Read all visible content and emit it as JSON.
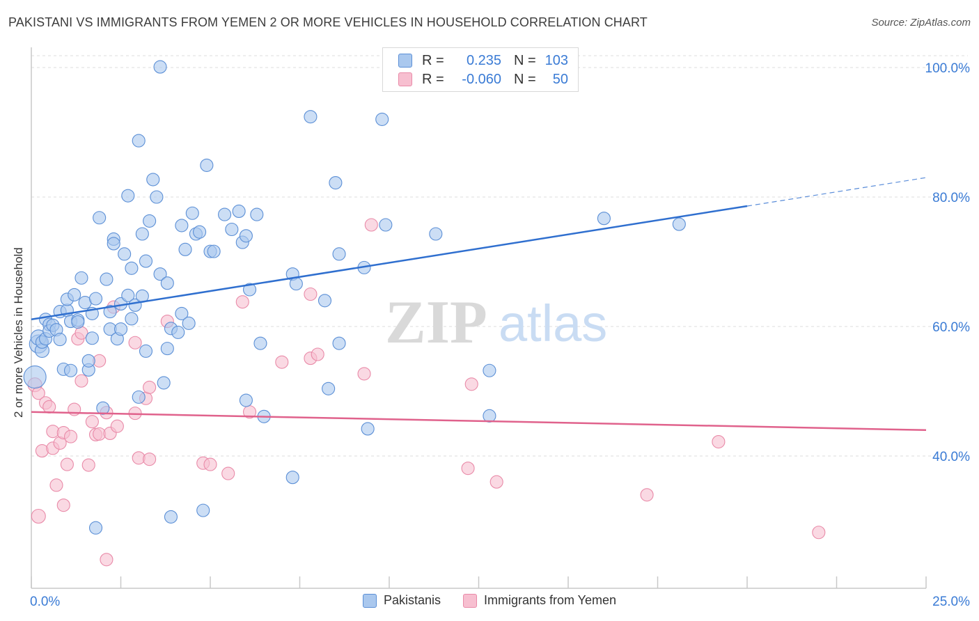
{
  "header": {
    "title": "PAKISTANI VS IMMIGRANTS FROM YEMEN 2 OR MORE VEHICLES IN HOUSEHOLD CORRELATION CHART",
    "source": "Source: ZipAtlas.com"
  },
  "watermark": {
    "zip": "ZIP",
    "atlas": "atlas"
  },
  "legend_top": [
    {
      "r_label": "R =",
      "r_value": "0.235",
      "n_label": "N =",
      "n_value": "103"
    },
    {
      "r_label": "R =",
      "r_value": "-0.060",
      "n_label": "N =",
      "n_value": "50"
    }
  ],
  "legend_bottom": [
    {
      "label": "Pakistanis"
    },
    {
      "label": "Immigrants from Yemen"
    }
  ],
  "colors": {
    "pakistanis_fill": "#aac8ee",
    "pakistanis_stroke": "#5b8fd6",
    "pakistanis_line": "#2f6fcf",
    "yemen_fill": "#f7bfd0",
    "yemen_stroke": "#e98aa8",
    "yemen_line": "#e0628c",
    "tick_label": "#3a7bd5",
    "grid": "#dedede"
  },
  "chart_data": {
    "type": "scatter",
    "title": "PAKISTANI VS IMMIGRANTS FROM YEMEN 2 OR MORE VEHICLES IN HOUSEHOLD CORRELATION CHART",
    "xlabel": "",
    "ylabel": "2 or more Vehicles in Household",
    "xlim": [
      0,
      25
    ],
    "ylim": [
      20,
      103
    ],
    "x_tick_labels": [
      "0.0%",
      "25.0%"
    ],
    "y_ticks": [
      40,
      60,
      80,
      100
    ],
    "y_tick_labels": [
      "40.0%",
      "60.0%",
      "80.0%",
      "100.0%"
    ],
    "grid": true,
    "legend_position": "top-center",
    "series": [
      {
        "name": "Pakistanis",
        "r": 0.235,
        "n": 103,
        "trend": {
          "x0": 0.0,
          "y0": 61.1,
          "x1": 20.0,
          "y1": 78.6,
          "dashed_to_x": 25.0,
          "dashed_to_y": 83.0
        },
        "points": [
          [
            0.1,
            52.2,
            16
          ],
          [
            0.2,
            57.3,
            13
          ],
          [
            0.2,
            58.3,
            11
          ],
          [
            0.3,
            56.3,
            10
          ],
          [
            0.3,
            57.6,
            9
          ],
          [
            0.4,
            61.1,
            9
          ],
          [
            0.4,
            58.1,
            9
          ],
          [
            0.5,
            60.3,
            9
          ],
          [
            0.5,
            59.3,
            9
          ],
          [
            0.6,
            60.2,
            9
          ],
          [
            0.7,
            59.5,
            9
          ],
          [
            0.8,
            62.3,
            9
          ],
          [
            0.8,
            58.0,
            9
          ],
          [
            0.9,
            53.4,
            9
          ],
          [
            1.0,
            62.5,
            9
          ],
          [
            1.0,
            64.2,
            9
          ],
          [
            1.1,
            60.8,
            9
          ],
          [
            1.1,
            53.2,
            9
          ],
          [
            1.2,
            64.9,
            9
          ],
          [
            1.3,
            61.0,
            9
          ],
          [
            1.3,
            60.7,
            9
          ],
          [
            1.4,
            67.5,
            9
          ],
          [
            1.5,
            63.7,
            9
          ],
          [
            1.6,
            53.3,
            9
          ],
          [
            1.6,
            54.7,
            9
          ],
          [
            1.7,
            58.2,
            9
          ],
          [
            1.7,
            62.0,
            9
          ],
          [
            1.8,
            64.3,
            9
          ],
          [
            1.8,
            28.9,
            9
          ],
          [
            1.9,
            76.8,
            9
          ],
          [
            2.0,
            47.4,
            9
          ],
          [
            2.1,
            67.3,
            9
          ],
          [
            2.2,
            59.6,
            9
          ],
          [
            2.2,
            62.3,
            9
          ],
          [
            2.3,
            73.5,
            9
          ],
          [
            2.3,
            72.8,
            9
          ],
          [
            2.4,
            58.1,
            9
          ],
          [
            2.5,
            63.5,
            9
          ],
          [
            2.5,
            59.6,
            9
          ],
          [
            2.6,
            71.2,
            9
          ],
          [
            2.7,
            80.2,
            9
          ],
          [
            2.7,
            64.8,
            9
          ],
          [
            2.8,
            69.0,
            9
          ],
          [
            2.8,
            61.2,
            9
          ],
          [
            2.9,
            63.3,
            9
          ],
          [
            3.0,
            49.1,
            9
          ],
          [
            3.0,
            88.7,
            9
          ],
          [
            3.1,
            74.3,
            9
          ],
          [
            3.1,
            64.7,
            9
          ],
          [
            3.2,
            56.2,
            9
          ],
          [
            3.2,
            70.1,
            9
          ],
          [
            3.3,
            76.3,
            9
          ],
          [
            3.4,
            82.7,
            9
          ],
          [
            3.5,
            80.0,
            9
          ],
          [
            3.6,
            68.1,
            9
          ],
          [
            3.6,
            100.1,
            9
          ],
          [
            3.7,
            51.3,
            9
          ],
          [
            3.8,
            66.7,
            9
          ],
          [
            3.8,
            56.6,
            9
          ],
          [
            3.9,
            59.7,
            9
          ],
          [
            3.9,
            30.6,
            9
          ],
          [
            4.1,
            59.1,
            9
          ],
          [
            4.2,
            75.6,
            9
          ],
          [
            4.2,
            62.0,
            9
          ],
          [
            4.3,
            71.9,
            9
          ],
          [
            4.4,
            60.5,
            9
          ],
          [
            4.5,
            77.5,
            9
          ],
          [
            4.6,
            74.3,
            9
          ],
          [
            4.7,
            74.6,
            9
          ],
          [
            4.8,
            31.6,
            9
          ],
          [
            4.9,
            84.9,
            9
          ],
          [
            5.0,
            71.6,
            9
          ],
          [
            5.1,
            71.6,
            9
          ],
          [
            5.4,
            77.3,
            9
          ],
          [
            5.6,
            75.0,
            9
          ],
          [
            5.8,
            77.8,
            9
          ],
          [
            5.9,
            73.0,
            9
          ],
          [
            6.0,
            74.0,
            9
          ],
          [
            6.1,
            65.7,
            9
          ],
          [
            6.0,
            48.6,
            9
          ],
          [
            6.3,
            77.3,
            9
          ],
          [
            6.4,
            57.4,
            9
          ],
          [
            6.5,
            46.1,
            9
          ],
          [
            7.3,
            68.1,
            9
          ],
          [
            7.3,
            36.7,
            9
          ],
          [
            7.4,
            66.6,
            9
          ],
          [
            7.8,
            92.4,
            9
          ],
          [
            8.2,
            64.0,
            9
          ],
          [
            8.3,
            50.4,
            9
          ],
          [
            8.5,
            82.2,
            9
          ],
          [
            8.6,
            57.4,
            9
          ],
          [
            8.6,
            71.2,
            9
          ],
          [
            9.3,
            69.1,
            9
          ],
          [
            9.4,
            44.2,
            9
          ],
          [
            9.8,
            92.0,
            9
          ],
          [
            9.9,
            75.7,
            9
          ],
          [
            11.3,
            74.3,
            9
          ],
          [
            12.8,
            46.2,
            9
          ],
          [
            12.8,
            53.2,
            9
          ],
          [
            16.0,
            76.7,
            9
          ],
          [
            18.1,
            75.8,
            9
          ]
        ]
      },
      {
        "name": "Immigrants from Yemen",
        "r": -0.06,
        "n": 50,
        "trend": {
          "x0": 0.0,
          "y0": 46.8,
          "x1": 25.0,
          "y1": 44.0
        },
        "points": [
          [
            0.1,
            51.0,
            10
          ],
          [
            0.2,
            30.7,
            10
          ],
          [
            0.2,
            49.7,
            9
          ],
          [
            0.3,
            40.8,
            9
          ],
          [
            0.4,
            48.2,
            9
          ],
          [
            0.5,
            47.6,
            9
          ],
          [
            0.6,
            43.8,
            9
          ],
          [
            0.6,
            41.2,
            9
          ],
          [
            0.7,
            35.5,
            9
          ],
          [
            0.8,
            42.0,
            9
          ],
          [
            0.9,
            32.4,
            9
          ],
          [
            0.9,
            43.6,
            9
          ],
          [
            1.0,
            38.7,
            9
          ],
          [
            1.1,
            43.0,
            9
          ],
          [
            1.2,
            47.2,
            9
          ],
          [
            1.3,
            58.1,
            9
          ],
          [
            1.4,
            51.6,
            9
          ],
          [
            1.4,
            59.0,
            9
          ],
          [
            1.6,
            38.6,
            9
          ],
          [
            1.7,
            45.3,
            9
          ],
          [
            1.8,
            43.3,
            9
          ],
          [
            1.9,
            54.7,
            9
          ],
          [
            1.9,
            43.4,
            9
          ],
          [
            2.1,
            24.0,
            9
          ],
          [
            2.1,
            46.7,
            9
          ],
          [
            2.2,
            43.5,
            9
          ],
          [
            2.3,
            63.0,
            9
          ],
          [
            2.4,
            44.6,
            9
          ],
          [
            2.9,
            57.5,
            9
          ],
          [
            2.9,
            46.6,
            9
          ],
          [
            3.0,
            39.7,
            9
          ],
          [
            3.2,
            48.9,
            9
          ],
          [
            3.3,
            50.6,
            9
          ],
          [
            3.3,
            39.5,
            9
          ],
          [
            3.8,
            60.8,
            9
          ],
          [
            4.8,
            38.9,
            9
          ],
          [
            5.0,
            38.7,
            9
          ],
          [
            5.5,
            37.3,
            9
          ],
          [
            5.9,
            63.8,
            9
          ],
          [
            6.1,
            46.8,
            9
          ],
          [
            7.0,
            54.5,
            9
          ],
          [
            7.8,
            65.0,
            9
          ],
          [
            7.8,
            55.1,
            9
          ],
          [
            8.0,
            55.7,
            9
          ],
          [
            9.3,
            52.7,
            9
          ],
          [
            9.5,
            75.7,
            9
          ],
          [
            12.2,
            38.1,
            9
          ],
          [
            12.3,
            51.1,
            9
          ],
          [
            13.0,
            36.0,
            9
          ],
          [
            17.2,
            34.0,
            9
          ],
          [
            19.2,
            42.2,
            9
          ],
          [
            22.0,
            28.2,
            9
          ]
        ]
      }
    ]
  }
}
